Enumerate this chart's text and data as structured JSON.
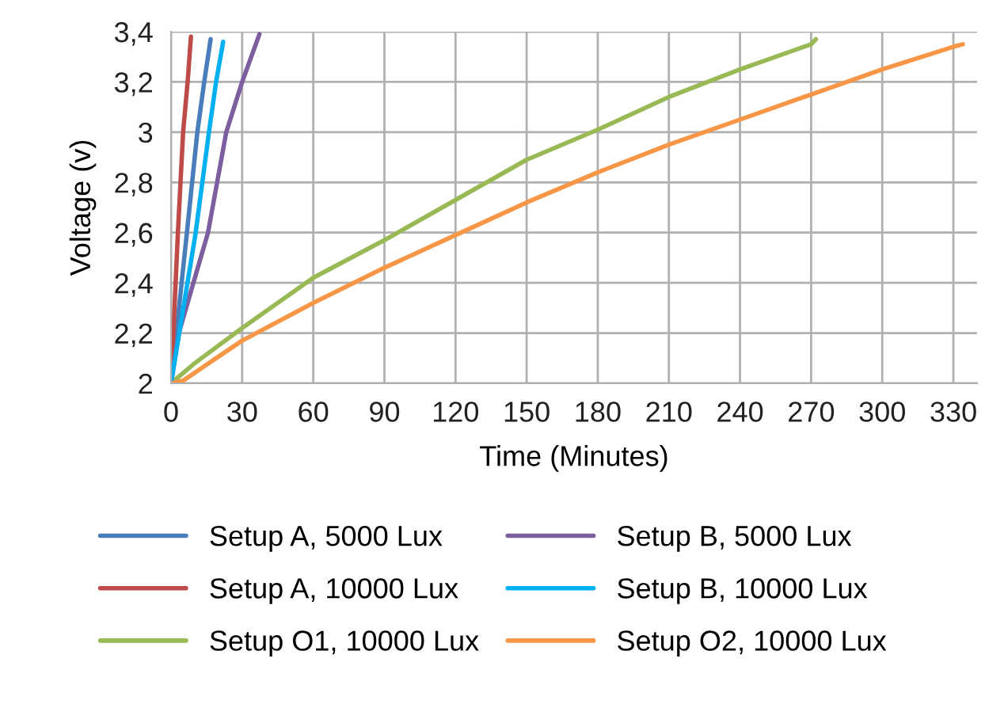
{
  "chart_data": {
    "type": "line",
    "xlabel": "Time (Minutes)",
    "ylabel": "Voltage (v)",
    "xlim": [
      0,
      340
    ],
    "xticks": [
      0,
      30,
      60,
      90,
      120,
      150,
      180,
      210,
      240,
      270,
      300,
      330
    ],
    "ylim": [
      2,
      3.4
    ],
    "yticks": [
      2,
      {
        "value": 2.2,
        "label": "2,2"
      },
      {
        "value": 2.4,
        "label": "2,4"
      },
      {
        "value": 2.6,
        "label": "2,6"
      },
      {
        "value": 2.8,
        "label": "2,8"
      },
      3,
      {
        "value": 3.2,
        "label": "3,2"
      },
      {
        "value": 3.4,
        "label": "3,4"
      }
    ],
    "grid": true,
    "legend": "bottom",
    "marker": "none",
    "line_style": "solid",
    "series": [
      {
        "name": "Setup A, 5000 Lux",
        "color": "#4a7ebb",
        "x": [
          0,
          6.7,
          11.1,
          14,
          16.7
        ],
        "values": [
          2.0,
          2.6,
          3.0,
          3.2,
          3.37
        ]
      },
      {
        "name": "Setup A, 10000 Lux",
        "color": "#be4b48",
        "x": [
          0,
          2.9,
          5.1,
          7,
          8.4
        ],
        "values": [
          2.0,
          2.6,
          3.0,
          3.2,
          3.38
        ]
      },
      {
        "name": "Setup O1, 10000 Lux",
        "color": "#98b954",
        "x": [
          0,
          10,
          30,
          60,
          90,
          120,
          150,
          180,
          210,
          240,
          270,
          272
        ],
        "values": [
          2.0,
          2.08,
          2.22,
          2.42,
          2.57,
          2.73,
          2.89,
          3.01,
          3.14,
          3.25,
          3.35,
          3.37
        ]
      },
      {
        "name": "Setup B, 5000 Lux",
        "color": "#7d5fa0",
        "x": [
          0,
          3.3,
          15.6,
          23.3,
          30,
          37.3
        ],
        "values": [
          2.0,
          2.2,
          2.6,
          3.0,
          3.2,
          3.39
        ]
      },
      {
        "name": "Setup B, 10000 Lux",
        "color": "#00b0f0",
        "x": [
          0,
          10.4,
          16,
          19,
          22
        ],
        "values": [
          2.0,
          2.6,
          3.0,
          3.2,
          3.36
        ]
      },
      {
        "name": "Setup O2, 10000 Lux",
        "color": "#f79646",
        "x": [
          0,
          5,
          30,
          60,
          90,
          120,
          150,
          180,
          210,
          240,
          270,
          300,
          330,
          334
        ],
        "values": [
          2.0,
          2.01,
          2.17,
          2.32,
          2.46,
          2.59,
          2.72,
          2.84,
          2.95,
          3.05,
          3.15,
          3.25,
          3.34,
          3.35
        ]
      }
    ]
  }
}
